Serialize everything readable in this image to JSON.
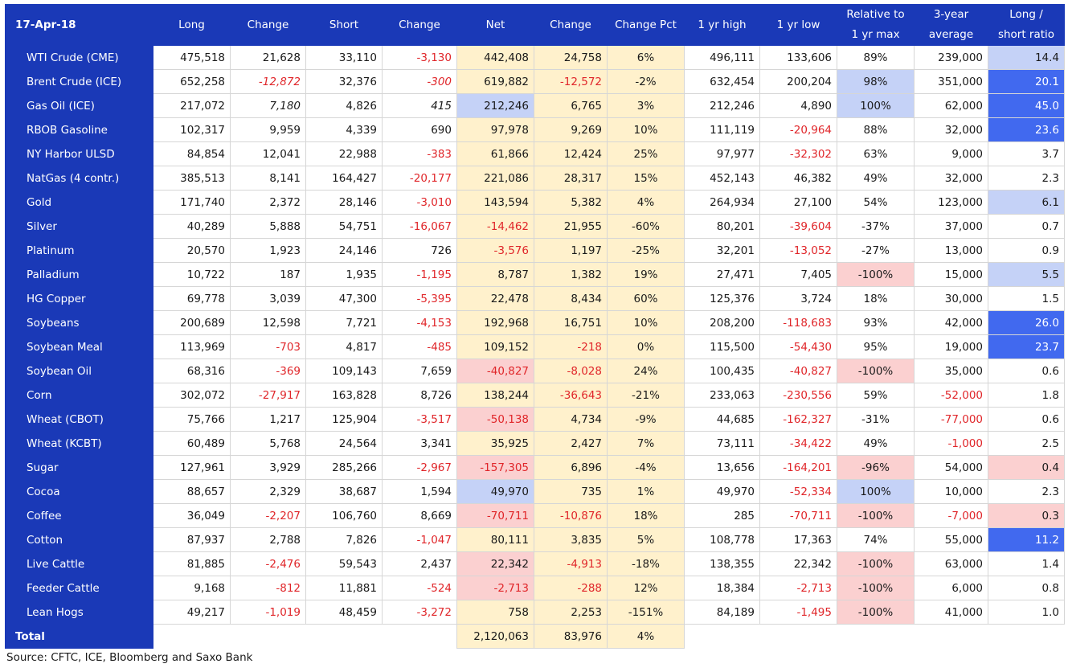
{
  "header": {
    "date": "17-Apr-18",
    "columns": [
      [
        "Long"
      ],
      [
        "Change"
      ],
      [
        "Short"
      ],
      [
        "Change"
      ],
      [
        "Net"
      ],
      [
        "Change"
      ],
      [
        "Change Pct"
      ],
      [
        "1 yr high"
      ],
      [
        "1 yr low"
      ],
      [
        "Relative to",
        "1 yr max"
      ],
      [
        "3-year",
        "average"
      ],
      [
        "Long /",
        "short ratio"
      ]
    ]
  },
  "rows": [
    {
      "name": "WTI Crude (CME)",
      "long": "475,518",
      "chg_long": "21,628",
      "short": "33,110",
      "chg_short": "-3,130",
      "net": "442,408",
      "chg_net": "24,758",
      "chg_pct": "6%",
      "high": "496,111",
      "low": "133,606",
      "rel": "89%",
      "avg3": "239,000",
      "ratio": "14.4"
    },
    {
      "name": "Brent Crude (ICE)",
      "long": "652,258",
      "chg_long": "-12,872",
      "short": "32,376",
      "chg_short": "-300",
      "net": "619,882",
      "chg_net": "-12,572",
      "chg_pct": "-2%",
      "high": "632,454",
      "low": "200,204",
      "rel": "98%",
      "avg3": "351,000",
      "ratio": "20.1"
    },
    {
      "name": "Gas Oil (ICE)",
      "long": "217,072",
      "chg_long": "7,180",
      "short": "4,826",
      "chg_short": "415",
      "net": "212,246",
      "chg_net": "6,765",
      "chg_pct": "3%",
      "high": "212,246",
      "low": "4,890",
      "rel": "100%",
      "avg3": "62,000",
      "ratio": "45.0"
    },
    {
      "name": "RBOB Gasoline",
      "long": "102,317",
      "chg_long": "9,959",
      "short": "4,339",
      "chg_short": "690",
      "net": "97,978",
      "chg_net": "9,269",
      "chg_pct": "10%",
      "high": "111,119",
      "low": "-20,964",
      "rel": "88%",
      "avg3": "32,000",
      "ratio": "23.6"
    },
    {
      "name": "NY Harbor ULSD",
      "long": "84,854",
      "chg_long": "12,041",
      "short": "22,988",
      "chg_short": "-383",
      "net": "61,866",
      "chg_net": "12,424",
      "chg_pct": "25%",
      "high": "97,977",
      "low": "-32,302",
      "rel": "63%",
      "avg3": "9,000",
      "ratio": "3.7"
    },
    {
      "name": "NatGas (4 contr.)",
      "long": "385,513",
      "chg_long": "8,141",
      "short": "164,427",
      "chg_short": "-20,177",
      "net": "221,086",
      "chg_net": "28,317",
      "chg_pct": "15%",
      "high": "452,143",
      "low": "46,382",
      "rel": "49%",
      "avg3": "32,000",
      "ratio": "2.3"
    },
    {
      "name": "Gold",
      "long": "171,740",
      "chg_long": "2,372",
      "short": "28,146",
      "chg_short": "-3,010",
      "net": "143,594",
      "chg_net": "5,382",
      "chg_pct": "4%",
      "high": "264,934",
      "low": "27,100",
      "rel": "54%",
      "avg3": "123,000",
      "ratio": "6.1"
    },
    {
      "name": "Silver",
      "long": "40,289",
      "chg_long": "5,888",
      "short": "54,751",
      "chg_short": "-16,067",
      "net": "-14,462",
      "chg_net": "21,955",
      "chg_pct": "-60%",
      "high": "80,201",
      "low": "-39,604",
      "rel": "-37%",
      "avg3": "37,000",
      "ratio": "0.7"
    },
    {
      "name": "Platinum",
      "long": "20,570",
      "chg_long": "1,923",
      "short": "24,146",
      "chg_short": "726",
      "net": "-3,576",
      "chg_net": "1,197",
      "chg_pct": "-25%",
      "high": "32,201",
      "low": "-13,052",
      "rel": "-27%",
      "avg3": "13,000",
      "ratio": "0.9"
    },
    {
      "name": "Palladium",
      "long": "10,722",
      "chg_long": "187",
      "short": "1,935",
      "chg_short": "-1,195",
      "net": "8,787",
      "chg_net": "1,382",
      "chg_pct": "19%",
      "high": "27,471",
      "low": "7,405",
      "rel": "-100%",
      "avg3": "15,000",
      "ratio": "5.5"
    },
    {
      "name": "HG Copper",
      "long": "69,778",
      "chg_long": "3,039",
      "short": "47,300",
      "chg_short": "-5,395",
      "net": "22,478",
      "chg_net": "8,434",
      "chg_pct": "60%",
      "high": "125,376",
      "low": "3,724",
      "rel": "18%",
      "avg3": "30,000",
      "ratio": "1.5"
    },
    {
      "name": "Soybeans",
      "long": "200,689",
      "chg_long": "12,598",
      "short": "7,721",
      "chg_short": "-4,153",
      "net": "192,968",
      "chg_net": "16,751",
      "chg_pct": "10%",
      "high": "208,200",
      "low": "-118,683",
      "rel": "93%",
      "avg3": "42,000",
      "ratio": "26.0"
    },
    {
      "name": "Soybean Meal",
      "long": "113,969",
      "chg_long": "-703",
      "short": "4,817",
      "chg_short": "-485",
      "net": "109,152",
      "chg_net": "-218",
      "chg_pct": "0%",
      "high": "115,500",
      "low": "-54,430",
      "rel": "95%",
      "avg3": "19,000",
      "ratio": "23.7"
    },
    {
      "name": "Soybean Oil",
      "long": "68,316",
      "chg_long": "-369",
      "short": "109,143",
      "chg_short": "7,659",
      "net": "-40,827",
      "chg_net": "-8,028",
      "chg_pct": "24%",
      "high": "100,435",
      "low": "-40,827",
      "rel": "-100%",
      "avg3": "35,000",
      "ratio": "0.6"
    },
    {
      "name": "Corn",
      "long": "302,072",
      "chg_long": "-27,917",
      "short": "163,828",
      "chg_short": "8,726",
      "net": "138,244",
      "chg_net": "-36,643",
      "chg_pct": "-21%",
      "high": "233,063",
      "low": "-230,556",
      "rel": "59%",
      "avg3": "-52,000",
      "ratio": "1.8"
    },
    {
      "name": "Wheat (CBOT)",
      "long": "75,766",
      "chg_long": "1,217",
      "short": "125,904",
      "chg_short": "-3,517",
      "net": "-50,138",
      "chg_net": "4,734",
      "chg_pct": "-9%",
      "high": "44,685",
      "low": "-162,327",
      "rel": "-31%",
      "avg3": "-77,000",
      "ratio": "0.6"
    },
    {
      "name": "Wheat (KCBT)",
      "long": "60,489",
      "chg_long": "5,768",
      "short": "24,564",
      "chg_short": "3,341",
      "net": "35,925",
      "chg_net": "2,427",
      "chg_pct": "7%",
      "high": "73,111",
      "low": "-34,422",
      "rel": "49%",
      "avg3": "-1,000",
      "ratio": "2.5"
    },
    {
      "name": "Sugar",
      "long": "127,961",
      "chg_long": "3,929",
      "short": "285,266",
      "chg_short": "-2,967",
      "net": "-157,305",
      "chg_net": "6,896",
      "chg_pct": "-4%",
      "high": "13,656",
      "low": "-164,201",
      "rel": "-96%",
      "avg3": "54,000",
      "ratio": "0.4"
    },
    {
      "name": "Cocoa",
      "long": "88,657",
      "chg_long": "2,329",
      "short": "38,687",
      "chg_short": "1,594",
      "net": "49,970",
      "chg_net": "735",
      "chg_pct": "1%",
      "high": "49,970",
      "low": "-52,334",
      "rel": "100%",
      "avg3": "10,000",
      "ratio": "2.3"
    },
    {
      "name": "Coffee",
      "long": "36,049",
      "chg_long": "-2,207",
      "short": "106,760",
      "chg_short": "8,669",
      "net": "-70,711",
      "chg_net": "-10,876",
      "chg_pct": "18%",
      "high": "285",
      "low": "-70,711",
      "rel": "-100%",
      "avg3": "-7,000",
      "ratio": "0.3"
    },
    {
      "name": "Cotton",
      "long": "87,937",
      "chg_long": "2,788",
      "short": "7,826",
      "chg_short": "-1,047",
      "net": "80,111",
      "chg_net": "3,835",
      "chg_pct": "5%",
      "high": "108,778",
      "low": "17,363",
      "rel": "74%",
      "avg3": "55,000",
      "ratio": "11.2"
    },
    {
      "name": "Live Cattle",
      "long": "81,885",
      "chg_long": "-2,476",
      "short": "59,543",
      "chg_short": "2,437",
      "net": "22,342",
      "chg_net": "-4,913",
      "chg_pct": "-18%",
      "high": "138,355",
      "low": "22,342",
      "rel": "-100%",
      "avg3": "63,000",
      "ratio": "1.4"
    },
    {
      "name": "Feeder Cattle",
      "long": "9,168",
      "chg_long": "-812",
      "short": "11,881",
      "chg_short": "-524",
      "net": "-2,713",
      "chg_net": "-288",
      "chg_pct": "12%",
      "high": "18,384",
      "low": "-2,713",
      "rel": "-100%",
      "avg3": "6,000",
      "ratio": "0.8"
    },
    {
      "name": "Lean Hogs",
      "long": "49,217",
      "chg_long": "-1,019",
      "short": "48,459",
      "chg_short": "-3,272",
      "net": "758",
      "chg_net": "2,253",
      "chg_pct": "-151%",
      "high": "84,189",
      "low": "-1,495",
      "rel": "-100%",
      "avg3": "41,000",
      "ratio": "1.0"
    }
  ],
  "group_starts": [
    6,
    11,
    17,
    21
  ],
  "italic_cells": [
    [
      1,
      "chg_long"
    ],
    [
      1,
      "chg_short"
    ],
    [
      2,
      "chg_long"
    ],
    [
      2,
      "chg_short"
    ]
  ],
  "cell_highlights": {
    "net": {
      "2": "lb",
      "13": "pk",
      "15": "pk",
      "17": "pk",
      "18": "lb",
      "19": "pk",
      "21": "pk",
      "22": "pk"
    },
    "rel": {
      "1": "lb",
      "2": "lb",
      "9": "pk",
      "13": "pk",
      "17": "pk",
      "18": "lb",
      "19": "pk",
      "21": "pk",
      "22": "pk",
      "23": "pk"
    },
    "ratio": {
      "0": "lb",
      "1": "db",
      "2": "db",
      "3": "db",
      "6": "lb",
      "9": "lb",
      "11": "db",
      "12": "db",
      "17": "pk",
      "19": "pk",
      "20": "db"
    }
  },
  "colors": {
    "header_bg": "#1a39b7",
    "net_bg": "#fff1cc",
    "light_blue": "#c5d2f7",
    "dark_blue": "#4169ef",
    "pink": "#fbd0d0",
    "negative_text": "#e0262a"
  },
  "total": {
    "label": "Total",
    "net": "2,120,063",
    "chg_net": "83,976",
    "chg_pct": "4%"
  },
  "source": "Source: CFTC, ICE, Bloomberg and Saxo Bank"
}
